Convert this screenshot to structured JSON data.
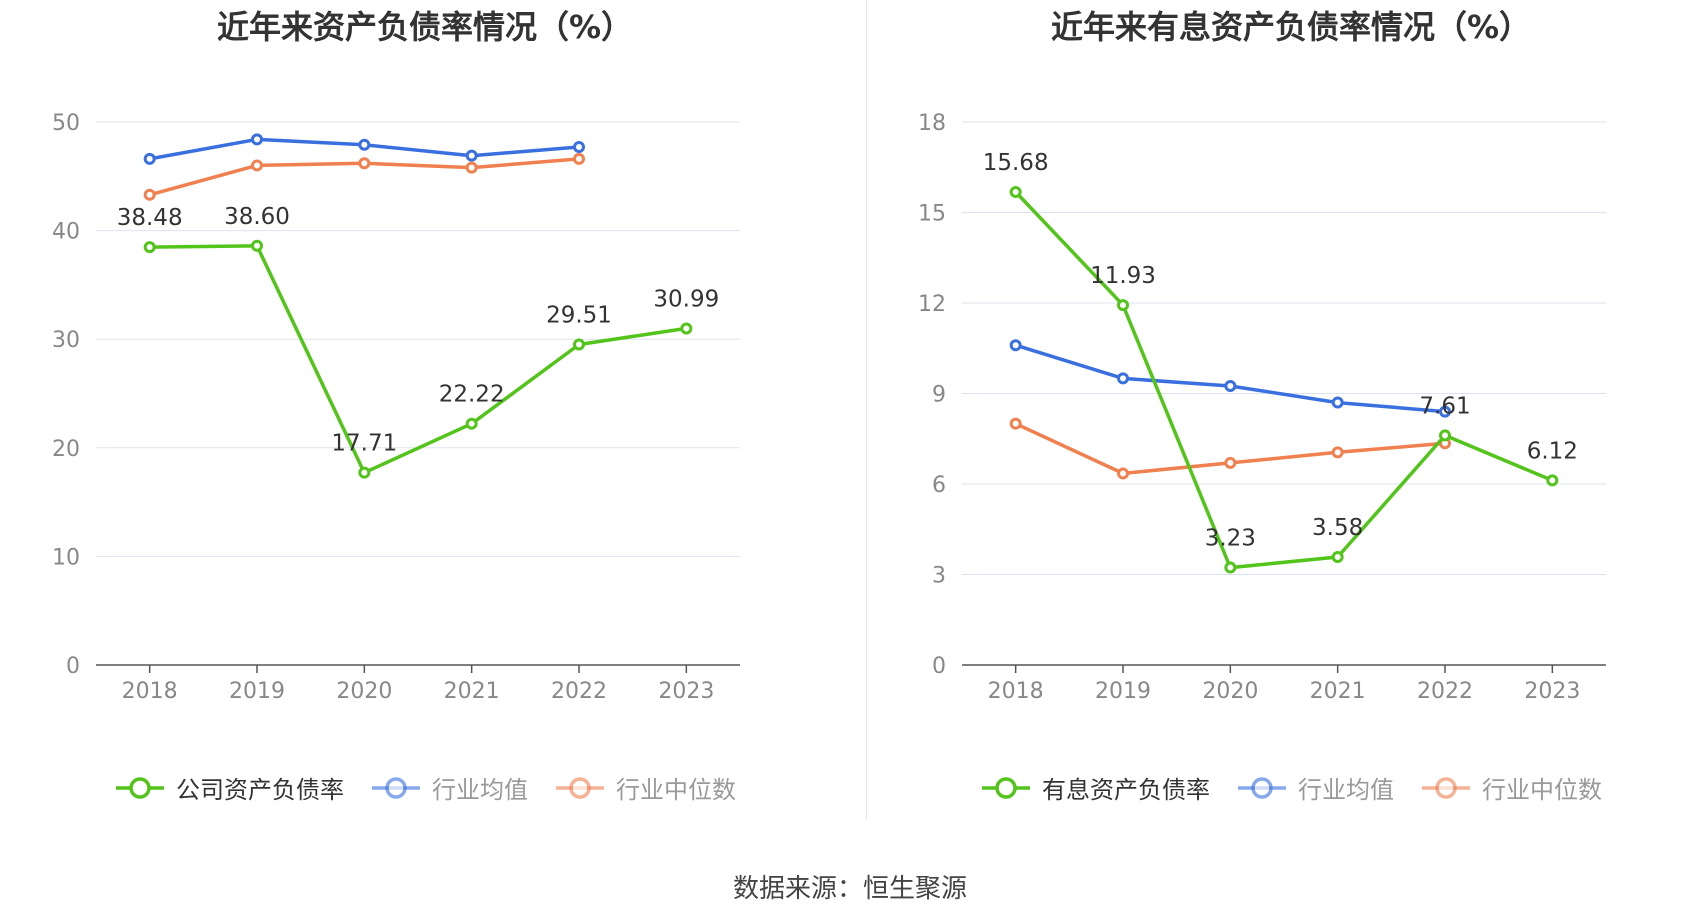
{
  "source": "数据来源：恒生聚源",
  "colors": {
    "company": "#52c41a",
    "industry_avg": "#3a6fe0",
    "industry_median": "#f08050"
  },
  "chart_data": [
    {
      "type": "line",
      "title": "近年来资产负债率情况（%）",
      "categories": [
        "2018",
        "2019",
        "2020",
        "2021",
        "2022",
        "2023"
      ],
      "ylim": [
        0,
        50
      ],
      "yticks": [
        0,
        10,
        20,
        30,
        40,
        50
      ],
      "grid": true,
      "legend_position": "bottom",
      "series": [
        {
          "name": "公司资产负债率",
          "color": "#52c41a",
          "labeled": true,
          "values": [
            38.48,
            38.6,
            17.71,
            22.22,
            29.51,
            30.99
          ],
          "labels": [
            "38.48",
            "38.60",
            "17.71",
            "22.22",
            "29.51",
            "30.99"
          ]
        },
        {
          "name": "行业均值",
          "color": "#3a6fe0",
          "labeled": false,
          "values": [
            46.6,
            48.4,
            47.9,
            46.9,
            47.7,
            null
          ]
        },
        {
          "name": "行业中位数",
          "color": "#f08050",
          "labeled": false,
          "values": [
            43.3,
            46.0,
            46.2,
            45.8,
            46.6,
            null
          ]
        }
      ]
    },
    {
      "type": "line",
      "title": "近年来有息资产负债率情况（%）",
      "categories": [
        "2018",
        "2019",
        "2020",
        "2021",
        "2022",
        "2023"
      ],
      "ylim": [
        0,
        18
      ],
      "yticks": [
        0,
        3,
        6,
        9,
        12,
        15,
        18
      ],
      "grid": true,
      "legend_position": "bottom",
      "series": [
        {
          "name": "有息资产负债率",
          "color": "#52c41a",
          "labeled": true,
          "values": [
            15.68,
            11.93,
            3.23,
            3.58,
            7.61,
            6.12
          ],
          "labels": [
            "15.68",
            "11.93",
            "3.23",
            "3.58",
            "7.61",
            "6.12"
          ]
        },
        {
          "name": "行业均值",
          "color": "#3a6fe0",
          "labeled": false,
          "values": [
            10.6,
            9.5,
            9.25,
            8.7,
            8.4,
            null
          ]
        },
        {
          "name": "行业中位数",
          "color": "#f08050",
          "labeled": false,
          "values": [
            8.0,
            6.35,
            6.7,
            7.05,
            7.35,
            null
          ]
        }
      ]
    }
  ]
}
